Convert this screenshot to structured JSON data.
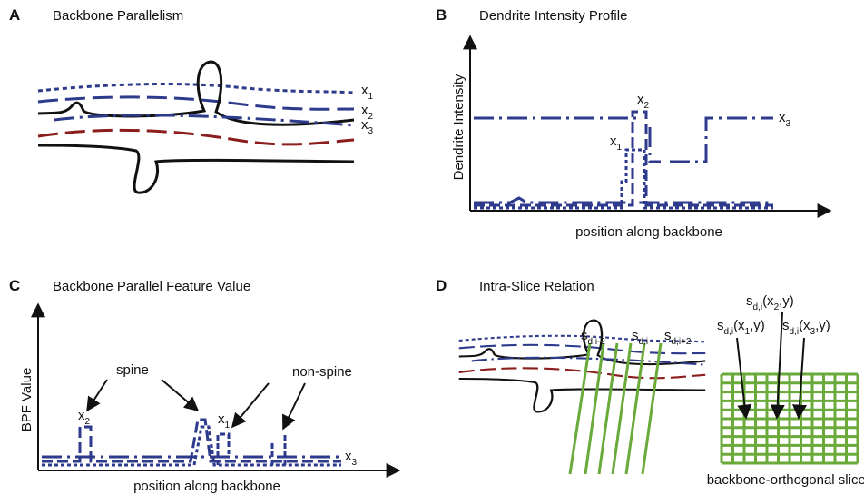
{
  "panels": [
    {
      "letter": "A",
      "title": "Backbone Parallelism",
      "labels": [
        {
          "text": "x",
          "sub": "1"
        },
        {
          "text": "x",
          "sub": "2"
        },
        {
          "text": "x",
          "sub": "3"
        }
      ]
    },
    {
      "letter": "B",
      "title": "Dendrite Intensity Profile",
      "y_label": "Dendrite Intensity",
      "x_label": "position along backbone",
      "labels": [
        {
          "text": "x",
          "sub": "2"
        },
        {
          "text": "x",
          "sub": "1"
        },
        {
          "text": "x",
          "sub": "3"
        }
      ]
    },
    {
      "letter": "C",
      "title": "Backbone Parallel Feature Value",
      "y_label": "BPF Value",
      "x_label": "position along backbone",
      "annotations": [
        "spine",
        "non-spine"
      ],
      "labels": [
        {
          "text": "x",
          "sub": "2"
        },
        {
          "text": "x",
          "sub": "1"
        },
        {
          "text": "x",
          "sub": "3"
        }
      ]
    },
    {
      "letter": "D",
      "title": "Intra-Slice Relation",
      "slice_labels": [
        {
          "text": "s",
          "sub": "d,i-2"
        },
        {
          "text": "s",
          "sub": "d,i"
        },
        {
          "text": "s",
          "sub": "d,i+2"
        }
      ],
      "grid_labels": [
        {
          "text": "s",
          "sub": "d,i",
          "open": "(x",
          "xsub": "2",
          "close": ",y)"
        },
        {
          "text": "s",
          "sub": "d,i",
          "open": "(x",
          "xsub": "1",
          "close": ",y)"
        },
        {
          "text": "s",
          "sub": "d,i",
          "open": "(x",
          "xsub": "3",
          "close": ",y)"
        }
      ],
      "caption": "backbone-orthogonal slices"
    }
  ]
}
